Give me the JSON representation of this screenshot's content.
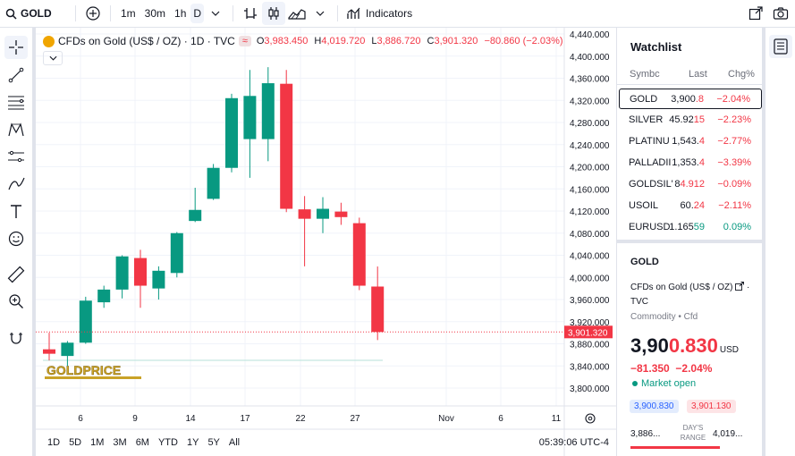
{
  "topbar": {
    "symbol": "GOLD",
    "intervals": [
      "1m",
      "30m",
      "1h",
      "D"
    ],
    "indicators_label": "Indicators"
  },
  "legend": {
    "title": "CFDs on Gold (US$ / OZ) · 1D · TVC",
    "open_label": "O",
    "open": "3,983.450",
    "high_label": "H",
    "high": "4,019.720",
    "low_label": "L",
    "low": "3,886.720",
    "close_label": "C",
    "close": "3,901.320",
    "change": "−80.860 (−2.03%)"
  },
  "chart_data": {
    "type": "candlestick",
    "y_ticks": [
      4440,
      4400,
      4360,
      4320,
      4280,
      4240,
      4200,
      4160,
      4120,
      4080,
      4040,
      4000,
      3960,
      3920,
      3880,
      3840,
      3800
    ],
    "y_tick_labels": [
      "4,440.000",
      "4,400.000",
      "4,360.000",
      "4,320.000",
      "4,280.000",
      "4,240.000",
      "4,200.000",
      "4,160.000",
      "4,120.000",
      "4,080.000",
      "4,040.000",
      "4,000.000",
      "3,960.000",
      "3,920.000",
      "3,880.000",
      "3,840.000",
      "3,800.000"
    ],
    "ylim": [
      3780,
      4450
    ],
    "x_tick_labels": [
      "6",
      "9",
      "14",
      "17",
      "22",
      "27",
      "Nov",
      "6",
      "11"
    ],
    "current_price_label": "3,901.320",
    "current_price": 3901.32,
    "candles": [
      {
        "o": 3870,
        "h": 3900,
        "l": 3850,
        "c": 3862
      },
      {
        "o": 3858,
        "h": 3885,
        "l": 3840,
        "c": 3882
      },
      {
        "o": 3882,
        "h": 3965,
        "l": 3880,
        "c": 3958
      },
      {
        "o": 3955,
        "h": 3985,
        "l": 3945,
        "c": 3978
      },
      {
        "o": 3978,
        "h": 4040,
        "l": 3962,
        "c": 4038
      },
      {
        "o": 4035,
        "h": 4050,
        "l": 3945,
        "c": 3985
      },
      {
        "o": 3980,
        "h": 4020,
        "l": 3960,
        "c": 4012
      },
      {
        "o": 4008,
        "h": 4082,
        "l": 4000,
        "c": 4080
      },
      {
        "o": 4102,
        "h": 4162,
        "l": 4100,
        "c": 4122
      },
      {
        "o": 4142,
        "h": 4205,
        "l": 4140,
        "c": 4198
      },
      {
        "o": 4198,
        "h": 4332,
        "l": 4190,
        "c": 4324
      },
      {
        "o": 4250,
        "h": 4375,
        "l": 4180,
        "c": 4328
      },
      {
        "o": 4250,
        "h": 4380,
        "l": 4210,
        "c": 4351
      },
      {
        "o": 4350,
        "h": 4375,
        "l": 4118,
        "c": 4124
      },
      {
        "o": 4123,
        "h": 4147,
        "l": 4020,
        "c": 4106
      },
      {
        "o": 4106,
        "h": 4145,
        "l": 4080,
        "c": 4124
      },
      {
        "o": 4119,
        "h": 4135,
        "l": 4095,
        "c": 4109
      },
      {
        "o": 4098,
        "h": 4108,
        "l": 3977,
        "c": 3985
      },
      {
        "o": 3983.45,
        "h": 4019.72,
        "l": 3886.72,
        "c": 3901.32
      }
    ],
    "watermark": "GOLDPRICE"
  },
  "bottombar": {
    "ranges": [
      "1D",
      "5D",
      "1M",
      "3M",
      "6M",
      "YTD",
      "1Y",
      "5Y",
      "All"
    ],
    "time": "05:39:06 UTC-4"
  },
  "watchlist": {
    "title": "Watchlist",
    "columns": [
      "Symbc",
      "Last",
      "Chg%"
    ],
    "rows": [
      {
        "symbol": "GOLD",
        "last_a": "3,900",
        "last_b": ".8",
        "chg": "−2.04%",
        "dir": "neg"
      },
      {
        "symbol": "SILVER",
        "last_a": "45.92",
        "last_b": "15",
        "chg": "−2.23%",
        "dir": "neg"
      },
      {
        "symbol": "PLATINU",
        "last_a": "1,543.",
        "last_b": "4",
        "chg": "−2.77%",
        "dir": "neg"
      },
      {
        "symbol": "PALLADII",
        "last_a": "1,353.",
        "last_b": "4",
        "chg": "−3.39%",
        "dir": "neg"
      },
      {
        "symbol": "GOLDSIL'",
        "last_a": "8",
        "last_b": "4.912",
        "chg": "−0.09%",
        "dir": "neg"
      },
      {
        "symbol": "USOIL",
        "last_a": "60.",
        "last_b": "24",
        "chg": "−2.11%",
        "dir": "neg"
      },
      {
        "symbol": "EURUSD",
        "last_a": "1.165",
        "last_b": "59",
        "chg": "0.09%",
        "dir": "pos"
      }
    ]
  },
  "details": {
    "symbol": "GOLD",
    "name": "CFDs on Gold (US$ / OZ)",
    "exchange": "TVC",
    "type": "Commodity • Cfd",
    "price_a": "3,90",
    "price_b": "0.830",
    "currency": "USD",
    "change": "−81.350",
    "change_pct": "−2.04%",
    "market": "Market open",
    "bid": "3,900.830",
    "ask": "3,901.130",
    "range_low": "3,886...",
    "range_label": "DAY'S RANGE",
    "range_high": "4,019..."
  },
  "colors": {
    "up": "#089981",
    "down": "#f23645",
    "accent": "#2962ff"
  }
}
